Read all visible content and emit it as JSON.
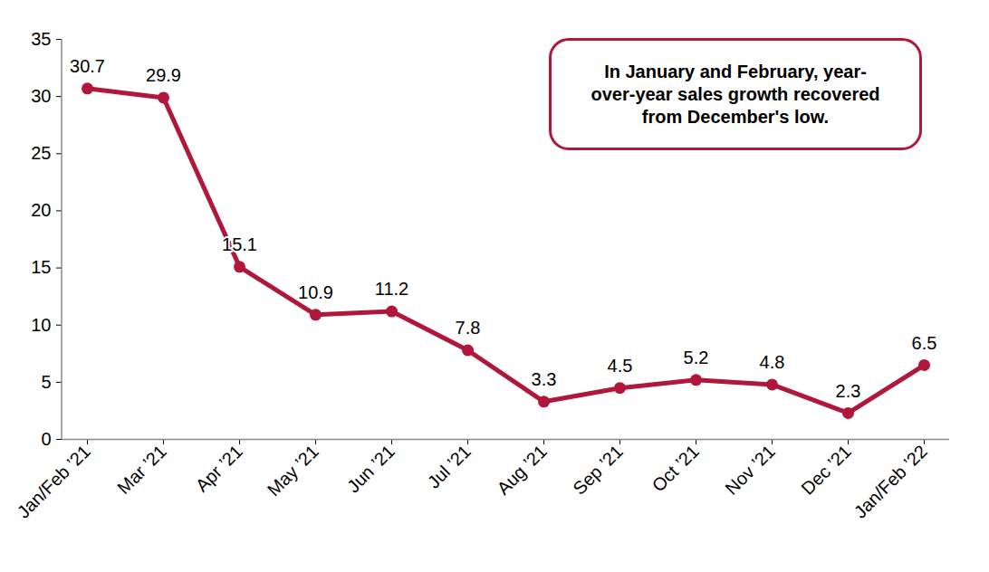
{
  "chart_data": {
    "type": "line",
    "categories": [
      "Jan/Feb ’21",
      "Mar ’21",
      "Apr ’21",
      "May ’21",
      "Jun ’21",
      "Jul ’21",
      "Aug ’21",
      "Sep ’21",
      "Oct ’21",
      "Nov ’21",
      "Dec ’21",
      "Jan/Feb ’22"
    ],
    "values": [
      30.7,
      29.9,
      15.1,
      10.9,
      11.2,
      7.8,
      3.3,
      4.5,
      5.2,
      4.8,
      2.3,
      6.5
    ],
    "color": "#b0173a",
    "marker": "circle",
    "line_style": "solid",
    "ylim": [
      0,
      35
    ],
    "yticks": [
      0,
      5,
      10,
      15,
      20,
      25,
      30,
      35
    ],
    "grid": false,
    "data_labels": true,
    "annotations": [
      "In January and February, year-over-year sales growth recovered from December's low."
    ]
  }
}
